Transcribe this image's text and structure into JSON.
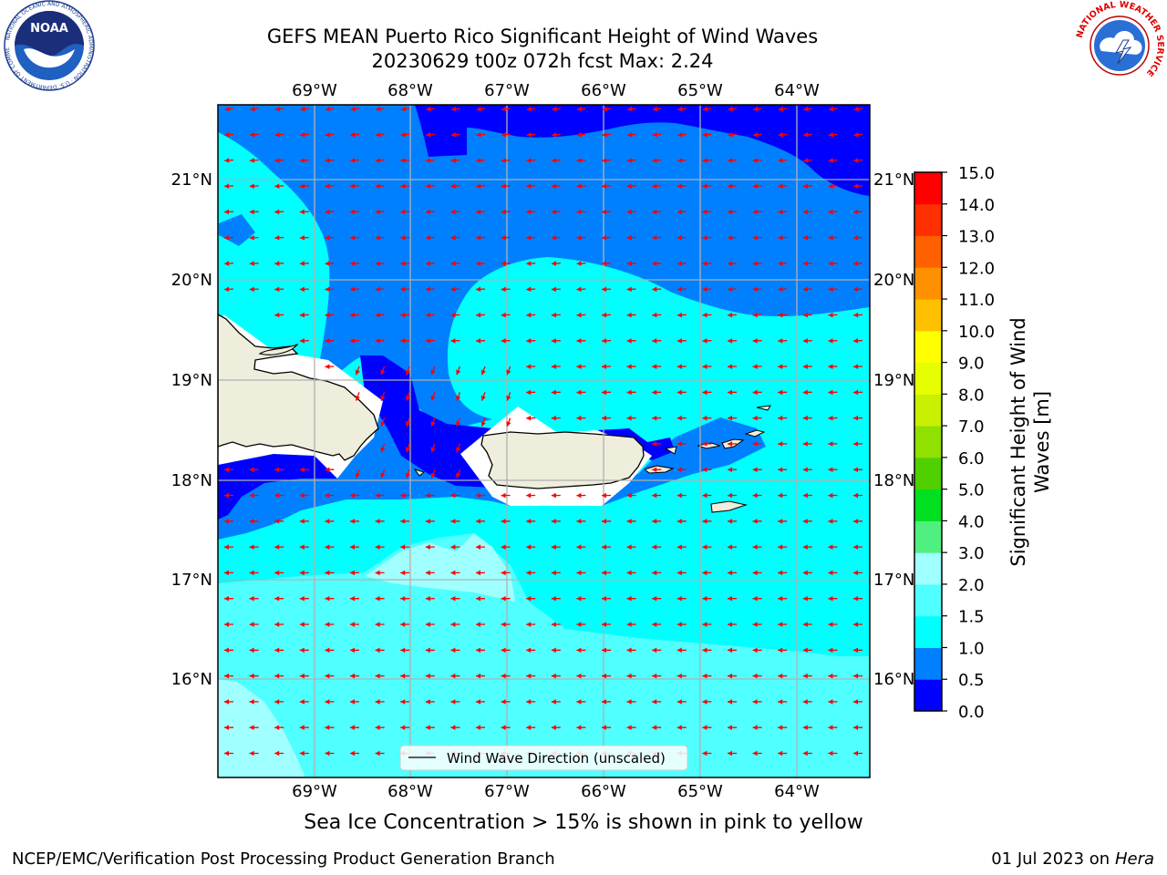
{
  "header": {
    "title_line1": "GEFS MEAN Puerto Rico Significant Height of Wind Waves",
    "title_line2": "20230629 t00z 072h fcst   Max: 2.24"
  },
  "logos": {
    "left": {
      "icon": "noaa-logo",
      "text": "NOAA",
      "ring_text": "NATIONAL OCEANIC AND ATMOSPHERIC ADMINISTRATION · U.S. DEPARTMENT OF COMMERCE"
    },
    "right": {
      "icon": "nws-logo",
      "ring_text": "NATIONAL WEATHER SERVICE"
    }
  },
  "map": {
    "lon_labels": [
      "69°W",
      "68°W",
      "67°W",
      "66°W",
      "65°W",
      "64°W"
    ],
    "lat_labels": [
      "21°N",
      "20°N",
      "19°N",
      "18°N",
      "17°N",
      "16°N"
    ],
    "legend_label": "Wind Wave Direction (unscaled)",
    "arrow_color": "#ff0000",
    "land_color": "#efeddc",
    "grid_color": "#b0b0b0"
  },
  "colorbar": {
    "label_line1": "Significant Height of Wind",
    "label_line2": "Waves [m]",
    "ticks": [
      "0.0",
      "0.5",
      "1.0",
      "1.5",
      "2.0",
      "3.0",
      "4.0",
      "5.0",
      "6.0",
      "7.0",
      "8.0",
      "9.0",
      "10.0",
      "11.0",
      "12.0",
      "13.0",
      "14.0",
      "15.0"
    ],
    "colors": [
      "#0000ff",
      "#0080ff",
      "#00ffff",
      "#50ffff",
      "#a0ffff",
      "#50f080",
      "#00e020",
      "#50d000",
      "#90e000",
      "#c8f000",
      "#e6ff00",
      "#ffff00",
      "#ffc000",
      "#ff9000",
      "#ff6000",
      "#ff3000",
      "#ff0000"
    ]
  },
  "note": "Sea Ice Concentration > 15% is shown in pink to yellow",
  "footer": {
    "left": "NCEP/EMC/Verification Post Processing Product Generation Branch",
    "right_prefix": "01 Jul 2023 on ",
    "right_machine": "Hera"
  }
}
